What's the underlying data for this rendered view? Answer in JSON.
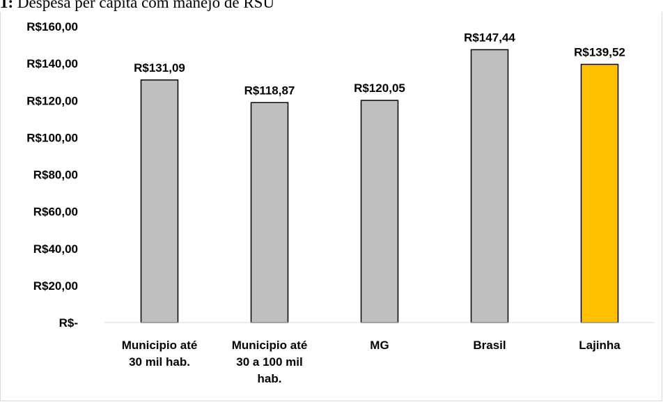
{
  "caption": {
    "prefix": "1:",
    "text": "Despesa per capita com manejo de RSU"
  },
  "chart_data": {
    "type": "bar",
    "categories": [
      [
        "Municipio até",
        "30 mil hab."
      ],
      [
        "Municipio até",
        "30 a 100  mil",
        "hab."
      ],
      [
        "MG"
      ],
      [
        "Brasil"
      ],
      [
        "Lajinha"
      ]
    ],
    "values": [
      131.09,
      118.87,
      120.05,
      147.44,
      139.52
    ],
    "data_labels": [
      "R$131,09",
      "R$118,87",
      "R$120,05",
      "R$147,44",
      "R$139,52"
    ],
    "bar_colors": [
      "#bfbfbf",
      "#bfbfbf",
      "#bfbfbf",
      "#bfbfbf",
      "#ffc000"
    ],
    "ylim": [
      0,
      160
    ],
    "yticks": [
      0,
      20,
      40,
      60,
      80,
      100,
      120,
      140,
      160
    ],
    "ytick_labels": [
      "R$-",
      "R$20,00",
      "R$40,00",
      "R$60,00",
      "R$80,00",
      "R$100,00",
      "R$120,00",
      "R$140,00",
      "R$160,00"
    ],
    "grid": false,
    "title": "",
    "xlabel": "",
    "ylabel": ""
  }
}
